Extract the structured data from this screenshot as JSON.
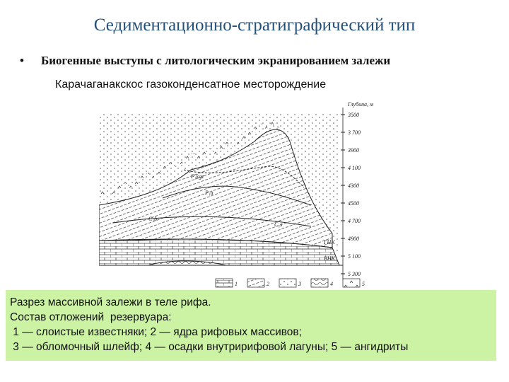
{
  "header": {
    "title": "Седиментационно-стратиграфический тип",
    "bullet": "Биогенные выступы с литологическим экранированием залежи",
    "subtitle": "Карачаганакскос газоконденсатное месторождение"
  },
  "figure": {
    "depth_title": "Глубина, м",
    "depth_labels": [
      "3500",
      "3 700",
      "3900",
      "4 100",
      "4300",
      "4500",
      "4 700",
      "4900",
      "5 100",
      "5 300"
    ],
    "layer_labels": [
      "P₁kgz",
      "P₁a",
      "C₁b",
      "C₁s",
      "ГНК",
      "ВНК"
    ],
    "legend_numbers": [
      "1",
      "2",
      "3",
      "4",
      "5"
    ]
  },
  "caption": {
    "lines": [
      "Разрез массивной залежи в теле рифа.",
      "Состав отложений  резервуара:",
      " 1 — слоистые известняки; 2 — ядра рифовых массивов;",
      " 3 — обломочный шлейф; 4 — осадки внутририфовой лагуны; 5 — ангидриты"
    ]
  }
}
